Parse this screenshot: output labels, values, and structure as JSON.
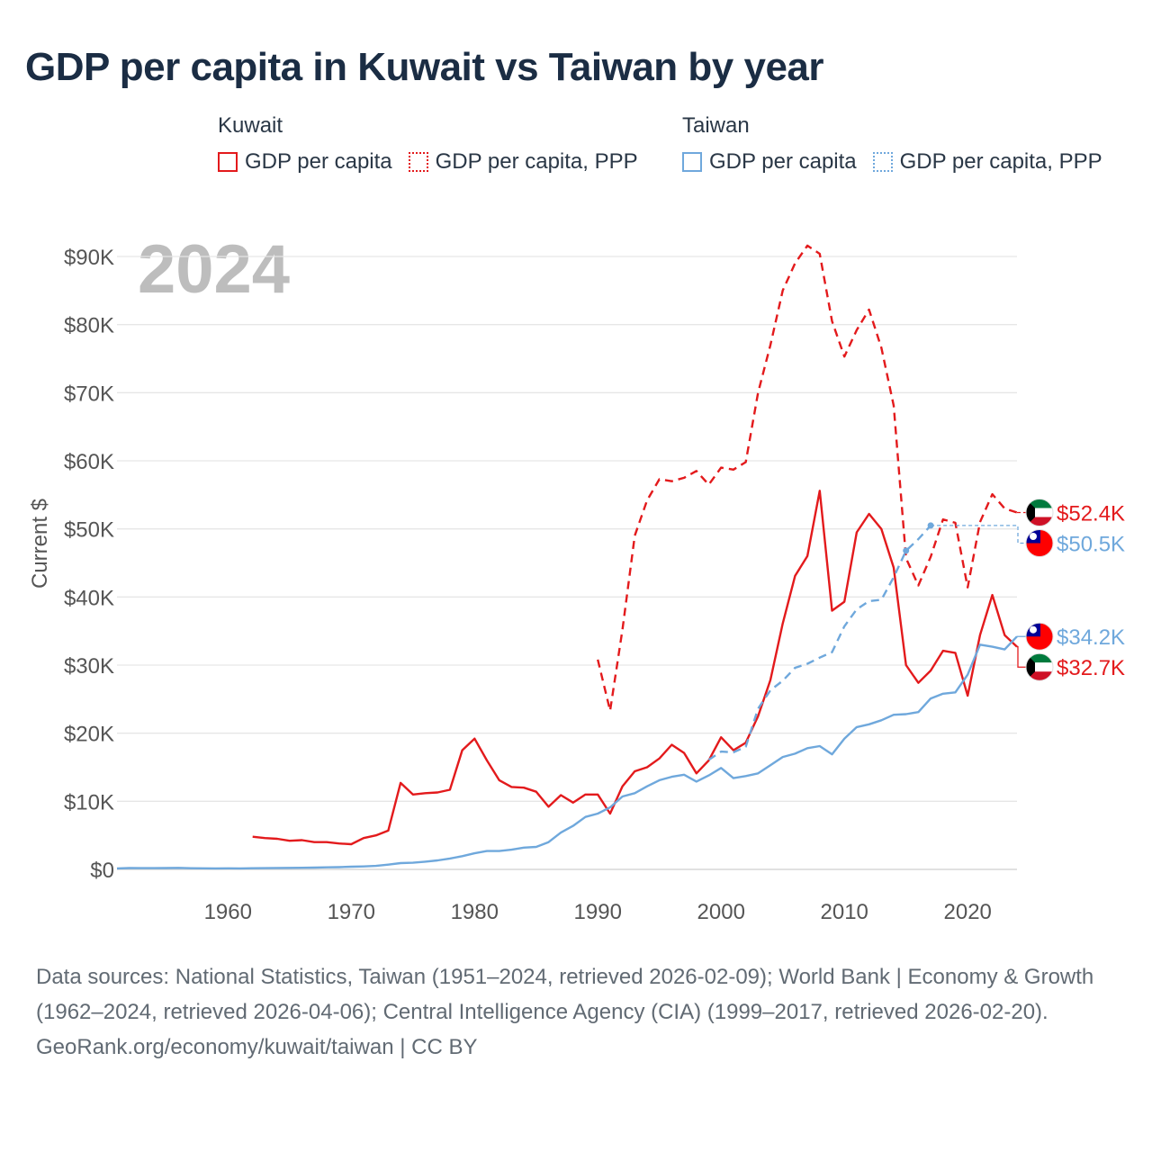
{
  "title": "GDP per capita in Kuwait vs Taiwan by year",
  "legend": {
    "kuwait": {
      "heading": "Kuwait",
      "solid_label": "GDP per capita",
      "dotted_label": "GDP per capita, PPP"
    },
    "taiwan": {
      "heading": "Taiwan",
      "solid_label": "GDP per capita",
      "dotted_label": "GDP per capita, PPP"
    }
  },
  "footer": {
    "sources": "Data sources: National Statistics, Taiwan (1951–2024, retrieved 2026-02-09); World Bank | Economy & Growth (1962–2024, retrieved 2026-04-06); Central Intelligence Agency (CIA) (1999–2017, retrieved 2026-02-20).",
    "credit": "GeoRank.org/economy/kuwait/taiwan | CC BY"
  },
  "chart_data": {
    "type": "line",
    "title": "GDP per capita in Kuwait vs Taiwan by year",
    "year_watermark": "2024",
    "xlabel": "",
    "ylabel": "Current $",
    "xlim": [
      1951,
      2024
    ],
    "ylim": [
      0,
      90000
    ],
    "x_ticks": [
      1960,
      1970,
      1980,
      1990,
      2000,
      2010,
      2020
    ],
    "x_tick_labels": [
      "1960",
      "1970",
      "1980",
      "1990",
      "2000",
      "2010",
      "2020"
    ],
    "y_ticks": [
      0,
      10000,
      20000,
      30000,
      40000,
      50000,
      60000,
      70000,
      80000,
      90000
    ],
    "y_tick_labels": [
      "$0",
      "$10K",
      "$20K",
      "$30K",
      "$40K",
      "$50K",
      "$60K",
      "$70K",
      "$80K",
      "$90K"
    ],
    "grid": true,
    "colors": {
      "kuwait": "#e31a1c",
      "taiwan": "#6fa8dc",
      "watermark": "#bdbdbd",
      "grid": "#e6e6e6",
      "axis_text": "#555555"
    },
    "series": [
      {
        "name": "Kuwait GDP per capita",
        "country": "kuwait",
        "style": "solid",
        "x": [
          1962,
          1963,
          1964,
          1965,
          1966,
          1967,
          1968,
          1969,
          1970,
          1971,
          1972,
          1973,
          1974,
          1975,
          1976,
          1977,
          1978,
          1979,
          1980,
          1981,
          1982,
          1983,
          1984,
          1985,
          1986,
          1987,
          1988,
          1989,
          1990,
          1991,
          1992,
          1993,
          1994,
          1995,
          1996,
          1997,
          1998,
          1999,
          2000,
          2001,
          2002,
          2003,
          2004,
          2005,
          2006,
          2007,
          2008,
          2009,
          2010,
          2011,
          2012,
          2013,
          2014,
          2015,
          2016,
          2017,
          2018,
          2019,
          2020,
          2021,
          2022,
          2023,
          2024
        ],
        "values": [
          4800,
          4600,
          4500,
          4200,
          4300,
          4000,
          4000,
          3800,
          3700,
          4600,
          5000,
          5700,
          12700,
          11000,
          11200,
          11300,
          11700,
          17500,
          19200,
          16000,
          13100,
          12100,
          12000,
          11400,
          9200,
          10900,
          9800,
          11000,
          11000,
          8200,
          12200,
          14400,
          15000,
          16300,
          18300,
          17100,
          14100,
          16000,
          19400,
          17500,
          18600,
          22500,
          27800,
          36100,
          43100,
          46000,
          55600,
          38000,
          39300,
          49500,
          52200,
          50000,
          44300,
          30000,
          27400,
          29200,
          32100,
          31800,
          25500,
          34400,
          40300,
          34400,
          32700
        ]
      },
      {
        "name": "Kuwait GDP per capita, PPP",
        "country": "kuwait",
        "style": "dashed",
        "x": [
          1990,
          1991,
          1992,
          1993,
          1994,
          1995,
          1996,
          1997,
          1998,
          1999,
          2000,
          2001,
          2002,
          2003,
          2004,
          2005,
          2006,
          2007,
          2008,
          2009,
          2010,
          2011,
          2012,
          2013,
          2014,
          2015,
          2016,
          2017,
          2018,
          2019,
          2020,
          2021,
          2022,
          2023,
          2024
        ],
        "values": [
          30800,
          23300,
          35200,
          49000,
          54200,
          57300,
          57000,
          57500,
          58500,
          56500,
          59000,
          58700,
          59800,
          70000,
          77000,
          85000,
          89000,
          91600,
          90400,
          80500,
          75300,
          79200,
          82200,
          76600,
          68100,
          45700,
          41700,
          45900,
          51400,
          50900,
          41400,
          51000,
          55100,
          53000,
          52400
        ]
      },
      {
        "name": "Taiwan GDP per capita",
        "country": "taiwan",
        "style": "solid",
        "x": [
          1951,
          1952,
          1953,
          1954,
          1955,
          1956,
          1957,
          1958,
          1959,
          1960,
          1961,
          1962,
          1963,
          1964,
          1965,
          1966,
          1967,
          1968,
          1969,
          1970,
          1971,
          1972,
          1973,
          1974,
          1975,
          1976,
          1977,
          1978,
          1979,
          1980,
          1981,
          1982,
          1983,
          1984,
          1985,
          1986,
          1987,
          1988,
          1989,
          1990,
          1991,
          1992,
          1993,
          1994,
          1995,
          1996,
          1997,
          1998,
          1999,
          2000,
          2001,
          2002,
          2003,
          2004,
          2005,
          2006,
          2007,
          2008,
          2009,
          2010,
          2011,
          2012,
          2013,
          2014,
          2015,
          2016,
          2017,
          2018,
          2019,
          2020,
          2021,
          2022,
          2023,
          2024
        ],
        "values": [
          150,
          200,
          180,
          190,
          200,
          220,
          170,
          160,
          150,
          160,
          150,
          170,
          190,
          210,
          220,
          240,
          270,
          300,
          330,
          390,
          440,
          520,
          700,
          920,
          980,
          1140,
          1320,
          1600,
          1940,
          2370,
          2700,
          2700,
          2900,
          3200,
          3300,
          4000,
          5400,
          6400,
          7700,
          8200,
          9100,
          10700,
          11200,
          12200,
          13100,
          13600,
          13900,
          12900,
          13800,
          14900,
          13400,
          13700,
          14100,
          15300,
          16500,
          17000,
          17800,
          18100,
          16900,
          19200,
          20900,
          21300,
          21900,
          22700,
          22800,
          23100,
          25100,
          25800,
          26000,
          28600,
          33000,
          32700,
          32300,
          34200
        ]
      },
      {
        "name": "Taiwan GDP per capita, PPP",
        "country": "taiwan",
        "style": "dashed",
        "x": [
          1999,
          2000,
          2001,
          2002,
          2003,
          2004,
          2005,
          2006,
          2007,
          2008,
          2009,
          2010,
          2011,
          2012,
          2013,
          2014,
          2015,
          2016,
          2017
        ],
        "values": [
          16100,
          17300,
          17200,
          18000,
          23600,
          26300,
          27700,
          29600,
          30200,
          31100,
          31900,
          35700,
          38200,
          39400,
          39600,
          42900,
          46800,
          48500,
          50500
        ]
      }
    ],
    "end_labels": [
      {
        "country": "kuwait",
        "series": "ppp",
        "value": 52400,
        "text": "$52.4K"
      },
      {
        "country": "taiwan",
        "series": "ppp",
        "value": 50500,
        "text": "$50.5K"
      },
      {
        "country": "taiwan",
        "series": "gdp",
        "value": 34200,
        "text": "$34.2K"
      },
      {
        "country": "kuwait",
        "series": "gdp",
        "value": 32700,
        "text": "$32.7K"
      }
    ]
  }
}
